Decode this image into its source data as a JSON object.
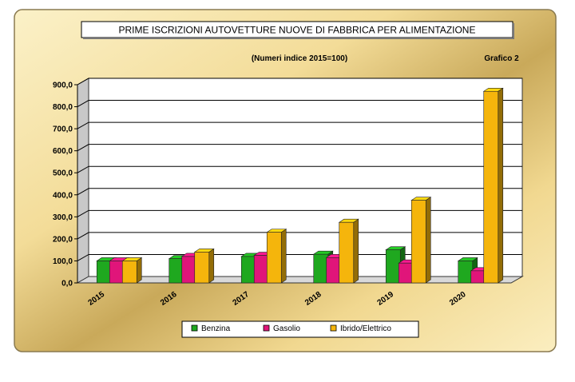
{
  "title": "PRIME ISCRIZIONI AUTOVETTURE NUOVE DI FABBRICA PER ALIMENTAZIONE",
  "subtitle": "(Numeri indice 2015=100)",
  "figure_label": "Grafico 2",
  "colors": {
    "frame_light": "#fdf4cf",
    "frame_mid": "#e9cf85",
    "frame_dark": "#b99a4c",
    "wall": "#ffffff",
    "floor": "#d9d9d9",
    "Benzina": "#1fa81f",
    "Gasolio": "#e0157a",
    "Ibrido/Elettrico": "#f5b50c"
  },
  "chart_data": {
    "type": "bar",
    "title": "PRIME ISCRIZIONI AUTOVETTURE NUOVE DI FABBRICA PER ALIMENTAZIONE",
    "subtitle": "(Numeri indice 2015=100)",
    "categories": [
      "2015",
      "2016",
      "2017",
      "2018",
      "2019",
      "2020"
    ],
    "series": [
      {
        "name": "Benzina",
        "values": [
          100,
          110,
          120,
          130,
          150,
          100
        ]
      },
      {
        "name": "Gasolio",
        "values": [
          100,
          120,
          125,
          115,
          90,
          55
        ]
      },
      {
        "name": "Ibrido/Elettrico",
        "values": [
          100,
          140,
          230,
          275,
          375,
          870
        ]
      }
    ],
    "ylim": [
      0,
      900
    ],
    "yticks": [
      "0,0",
      "100,0",
      "200,0",
      "300,0",
      "400,0",
      "500,0",
      "600,0",
      "700,0",
      "800,0",
      "900,0"
    ],
    "grid": true,
    "legend_position": "bottom",
    "style": "3d"
  }
}
